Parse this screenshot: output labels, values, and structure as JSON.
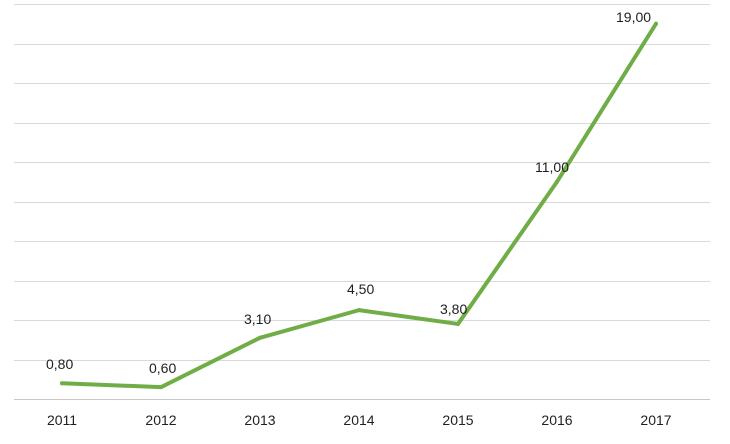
{
  "chart_data": {
    "type": "line",
    "title": "",
    "xlabel": "",
    "ylabel": "",
    "categories": [
      "2011",
      "2012",
      "2013",
      "2014",
      "2015",
      "2016",
      "2017"
    ],
    "series": [
      {
        "values": [
          0.8,
          0.6,
          3.1,
          4.5,
          3.8,
          11.0,
          19.0
        ],
        "data_labels": [
          "0,80",
          "0,60",
          "3,10",
          "4,50",
          "3,80",
          "11,00",
          "19,00"
        ],
        "color": "#70ad47"
      }
    ],
    "ylim": [
      0,
      20
    ],
    "y_gridline_step": 2,
    "grid": true,
    "legend": "none",
    "colors": {
      "line": "#70ad47",
      "grid": "#d9d9d9",
      "axis_text": "#1f1f1f"
    }
  }
}
